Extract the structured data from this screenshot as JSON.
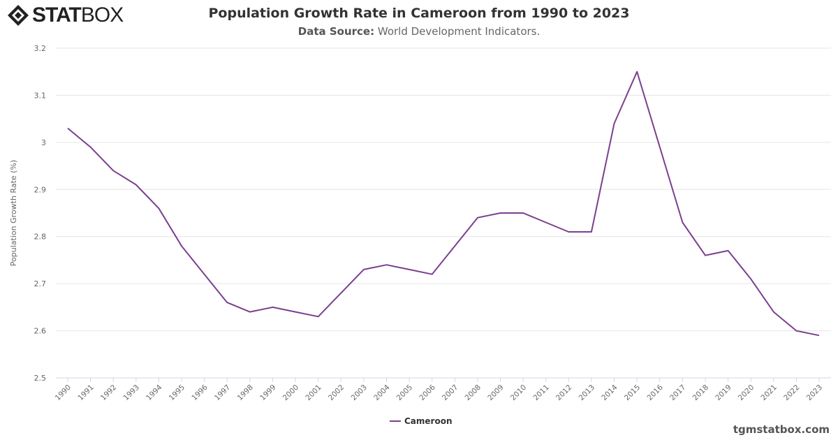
{
  "logo": {
    "text_bold": "STAT",
    "text_light": "BOX"
  },
  "header": {
    "title": "Population Growth Rate in Cameroon from 1990 to 2023",
    "source_label": "Data Source:",
    "source_value": "World Development Indicators."
  },
  "watermark": "tgmstatbox.com",
  "chart_data": {
    "type": "line",
    "title": "Population Growth Rate in Cameroon from 1990 to 2023",
    "ylabel": "Population Growth Rate (%)",
    "xlabel": "",
    "ylim": [
      2.5,
      3.2
    ],
    "yticks": [
      2.5,
      2.6,
      2.7,
      2.8,
      2.9,
      3,
      3.1,
      3.2
    ],
    "grid": true,
    "legend_position": "bottom",
    "color": "#7b3f8f",
    "x": [
      "1990",
      "1991",
      "1992",
      "1993",
      "1994",
      "1995",
      "1996",
      "1997",
      "1998",
      "1999",
      "2000",
      "2001",
      "2002",
      "2003",
      "2004",
      "2005",
      "2006",
      "2007",
      "2008",
      "2009",
      "2010",
      "2011",
      "2012",
      "2013",
      "2014",
      "2015",
      "2016",
      "2017",
      "2018",
      "2019",
      "2020",
      "2021",
      "2022",
      "2023"
    ],
    "series": [
      {
        "name": "Cameroon",
        "values": [
          3.03,
          2.99,
          2.94,
          2.91,
          2.86,
          2.78,
          2.72,
          2.66,
          2.64,
          2.65,
          2.64,
          2.63,
          2.68,
          2.73,
          2.74,
          2.73,
          2.72,
          2.78,
          2.84,
          2.85,
          2.85,
          2.83,
          2.81,
          2.81,
          3.04,
          3.15,
          2.99,
          2.83,
          2.76,
          2.77,
          2.71,
          2.64,
          2.6,
          2.59
        ]
      }
    ]
  }
}
